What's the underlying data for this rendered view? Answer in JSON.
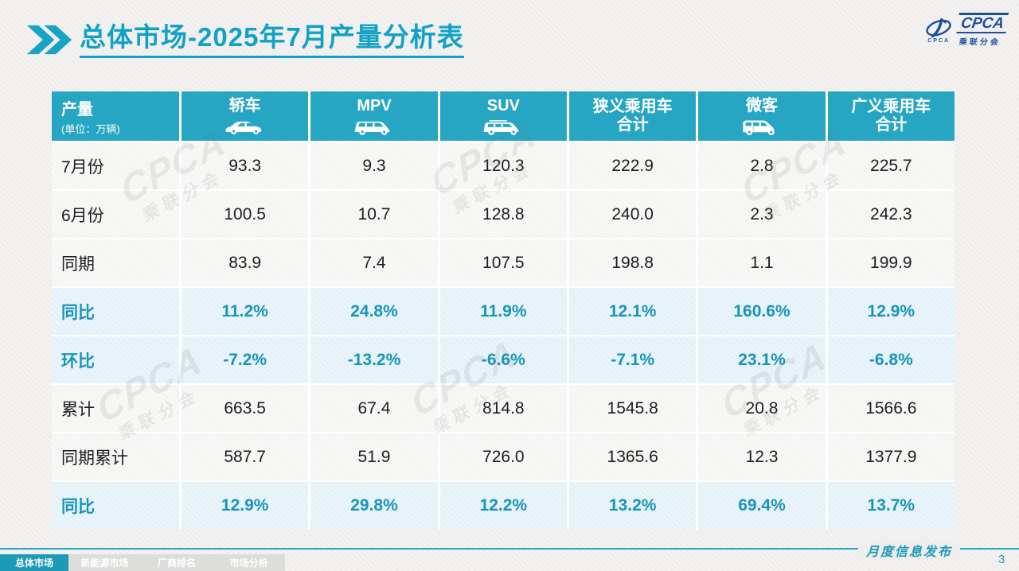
{
  "slide": {
    "title_main": "总体市场",
    "title_rest": "-2025年7月产量分析表",
    "release_label": "月度信息发布",
    "page_number": "3"
  },
  "logo": {
    "name": "CPCA",
    "subtitle": "乘联分会",
    "emblem_text": "CPCA"
  },
  "watermark": {
    "brand": "CPCA",
    "sub": "乘联分会"
  },
  "table": {
    "unit_title": "产量",
    "unit_sub": "(单位：万辆)",
    "columns": [
      {
        "label": "轿车",
        "icon": "sedan-icon"
      },
      {
        "label": "MPV",
        "icon": "mpv-icon"
      },
      {
        "label": "SUV",
        "icon": "suv-icon"
      },
      {
        "label": "狭义乘用车",
        "label2": "合计"
      },
      {
        "label": "微客",
        "icon": "microvan-icon"
      },
      {
        "label": "广义乘用车",
        "label2": "合计"
      }
    ],
    "rows": [
      {
        "label": "7月份",
        "type": "normal",
        "values": [
          "93.3",
          "9.3",
          "120.3",
          "222.9",
          "2.8",
          "225.7"
        ]
      },
      {
        "label": "6月份",
        "type": "normal",
        "values": [
          "100.5",
          "10.7",
          "128.8",
          "240.0",
          "2.3",
          "242.3"
        ]
      },
      {
        "label": "同期",
        "type": "normal",
        "values": [
          "83.9",
          "7.4",
          "107.5",
          "198.8",
          "1.1",
          "199.9"
        ]
      },
      {
        "label": "同比",
        "type": "highlight",
        "values": [
          "11.2%",
          "24.8%",
          "11.9%",
          "12.1%",
          "160.6%",
          "12.9%"
        ]
      },
      {
        "label": "环比",
        "type": "highlight",
        "values": [
          "-7.2%",
          "-13.2%",
          "-6.6%",
          "-7.1%",
          "23.1%",
          "-6.8%"
        ]
      },
      {
        "label": "累计",
        "type": "normal",
        "values": [
          "663.5",
          "67.4",
          "814.8",
          "1545.8",
          "20.8",
          "1566.6"
        ]
      },
      {
        "label": "同期累计",
        "type": "normal",
        "values": [
          "587.7",
          "51.9",
          "726.0",
          "1365.6",
          "12.3",
          "1377.9"
        ]
      },
      {
        "label": "同比",
        "type": "highlight",
        "values": [
          "12.9%",
          "29.8%",
          "12.2%",
          "13.2%",
          "69.4%",
          "13.7%"
        ]
      }
    ]
  },
  "footer": {
    "tabs": [
      {
        "label": "总体市场",
        "active": true
      },
      {
        "label": "新能源市场",
        "active": false
      },
      {
        "label": "厂商排名",
        "active": false
      },
      {
        "label": "市场分析",
        "active": false
      }
    ]
  },
  "chart_data": {
    "type": "table",
    "title": "总体市场-2025年7月产量分析表",
    "unit": "万辆",
    "columns": [
      "轿车",
      "MPV",
      "SUV",
      "狭义乘用车合计",
      "微客",
      "广义乘用车合计"
    ],
    "rows": [
      {
        "label": "7月份",
        "values": [
          93.3,
          9.3,
          120.3,
          222.9,
          2.8,
          225.7
        ]
      },
      {
        "label": "6月份",
        "values": [
          100.5,
          10.7,
          128.8,
          240.0,
          2.3,
          242.3
        ]
      },
      {
        "label": "同期",
        "values": [
          83.9,
          7.4,
          107.5,
          198.8,
          1.1,
          199.9
        ]
      },
      {
        "label": "同比",
        "values": [
          "11.2%",
          "24.8%",
          "11.9%",
          "12.1%",
          "160.6%",
          "12.9%"
        ]
      },
      {
        "label": "环比",
        "values": [
          "-7.2%",
          "-13.2%",
          "-6.6%",
          "-7.1%",
          "23.1%",
          "-6.8%"
        ]
      },
      {
        "label": "累计",
        "values": [
          663.5,
          67.4,
          814.8,
          1545.8,
          20.8,
          1566.6
        ]
      },
      {
        "label": "同期累计",
        "values": [
          587.7,
          51.9,
          726.0,
          1365.6,
          12.3,
          1377.9
        ]
      },
      {
        "label": "同比",
        "values": [
          "12.9%",
          "29.8%",
          "12.2%",
          "13.2%",
          "69.4%",
          "13.7%"
        ]
      }
    ]
  },
  "colors": {
    "header_teal": "#27a6c3",
    "title_teal": "#10a2c6",
    "percent_teal": "#1795b8",
    "footer_teal": "#1d9ab8",
    "highlight_bg": "#e4f1f8",
    "logo_blue": "#1d4f9e"
  }
}
